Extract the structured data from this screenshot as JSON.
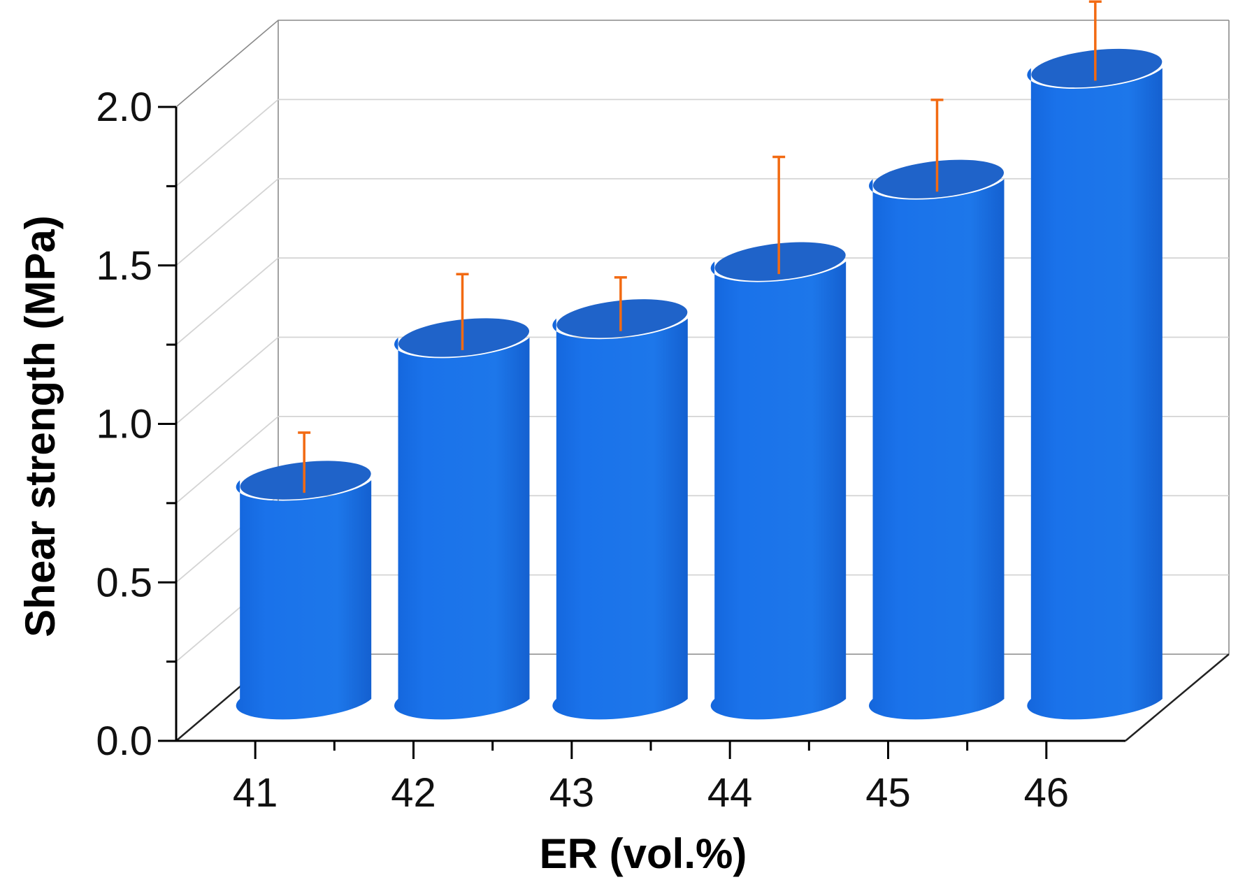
{
  "chart_data": {
    "type": "bar",
    "style": "3d-cylinder",
    "title": "",
    "xlabel": "ER (vol.%)",
    "ylabel": "Shear strength (MPa)",
    "categories": [
      "41",
      "42",
      "43",
      "44",
      "45",
      "46"
    ],
    "values": [
      0.69,
      1.14,
      1.2,
      1.38,
      1.64,
      1.99
    ],
    "error_plus": [
      0.15,
      0.2,
      0.13,
      0.33,
      0.25,
      0.21
    ],
    "ylim": [
      0.0,
      2.0
    ],
    "yticks": [
      "0.0",
      "0.5",
      "1.0",
      "1.5",
      "2.0"
    ],
    "grid": true,
    "colors": {
      "bar": "#1a74e6",
      "bar_top": "#1f63c9",
      "error": "#f26a12",
      "grid": "#d4d4d4",
      "axis": "#000000"
    }
  }
}
